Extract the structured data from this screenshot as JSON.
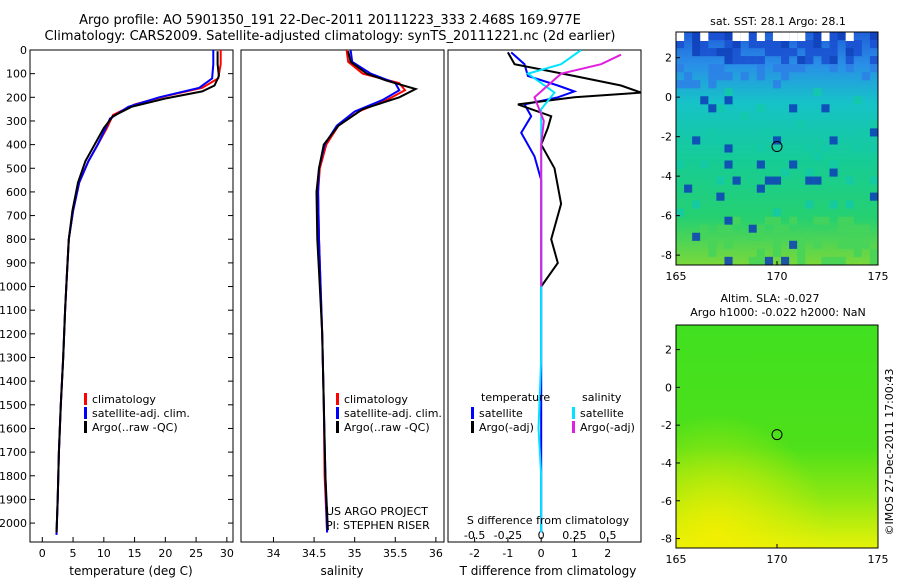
{
  "header": {
    "line1": "Argo profile: AO 5901350_191 22-Dec-2011 20111223_333 2.468S 169.977E",
    "line2": "Climatology: CARS2009. Satellite-adjusted climatology: synTS_20111221.nc (2d earlier)"
  },
  "colors": {
    "climatology": "#ff0000",
    "satellite": "#0000ff",
    "argo": "#000000",
    "salinity_satellite": "#00e5ff",
    "salinity_argo": "#e020e0"
  },
  "depth_ticks": [
    "0",
    "100",
    "200",
    "300",
    "400",
    "500",
    "600",
    "700",
    "800",
    "900",
    "1000",
    "1100",
    "1200",
    "1300",
    "1400",
    "1500",
    "1600",
    "1700",
    "1800",
    "1900",
    "2000"
  ],
  "chart_data": [
    {
      "type": "line",
      "id": "temperature",
      "xlabel": "temperature (deg C)",
      "xlim": [
        -2,
        31
      ],
      "ylim": [
        2080,
        0
      ],
      "y_inverted": true,
      "xticks": [
        "0",
        "5",
        "10",
        "15",
        "20",
        "25",
        "30"
      ],
      "xtick_values": [
        0,
        5,
        10,
        15,
        20,
        25,
        30
      ],
      "legend": [
        "climatology",
        "satellite-adj. clim.",
        "Argo(..raw -QC)"
      ],
      "series": [
        {
          "name": "climatology",
          "color_key": "climatology",
          "points": [
            [
              29.0,
              0
            ],
            [
              29.0,
              60
            ],
            [
              28.6,
              120
            ],
            [
              26.0,
              160
            ],
            [
              20.0,
              195
            ],
            [
              15.0,
              230
            ],
            [
              11.5,
              275
            ],
            [
              10.5,
              330
            ],
            [
              9.0,
              400
            ],
            [
              7.5,
              470
            ],
            [
              6.0,
              560
            ],
            [
              5.0,
              680
            ],
            [
              4.3,
              800
            ],
            [
              4.0,
              950
            ],
            [
              3.7,
              1100
            ],
            [
              3.4,
              1300
            ],
            [
              3.0,
              1500
            ],
            [
              2.7,
              1700
            ],
            [
              2.5,
              1900
            ],
            [
              2.3,
              2050
            ]
          ]
        },
        {
          "name": "satellite-adj. clim.",
          "color_key": "satellite",
          "points": [
            [
              27.8,
              0
            ],
            [
              27.8,
              60
            ],
            [
              27.6,
              120
            ],
            [
              25.5,
              160
            ],
            [
              19.0,
              200
            ],
            [
              14.0,
              240
            ],
            [
              11.0,
              290
            ],
            [
              10.3,
              330
            ],
            [
              9.0,
              400
            ],
            [
              7.5,
              470
            ],
            [
              6.0,
              560
            ],
            [
              5.0,
              680
            ],
            [
              4.3,
              800
            ],
            [
              4.0,
              950
            ],
            [
              3.7,
              1100
            ],
            [
              3.4,
              1300
            ],
            [
              3.0,
              1500
            ],
            [
              2.7,
              1700
            ],
            [
              2.5,
              1900
            ],
            [
              2.3,
              2050
            ]
          ]
        },
        {
          "name": "Argo(..raw -QC)",
          "color_key": "argo",
          "points": [
            [
              28.5,
              5
            ],
            [
              28.5,
              60
            ],
            [
              28.7,
              110
            ],
            [
              28.0,
              150
            ],
            [
              26.0,
              175
            ],
            [
              20.0,
              205
            ],
            [
              14.5,
              240
            ],
            [
              11.5,
              280
            ],
            [
              10.0,
              330
            ],
            [
              8.5,
              400
            ],
            [
              7.0,
              470
            ],
            [
              5.8,
              560
            ],
            [
              4.9,
              680
            ],
            [
              4.3,
              800
            ],
            [
              4.0,
              950
            ],
            [
              3.7,
              1100
            ],
            [
              3.4,
              1300
            ],
            [
              3.0,
              1500
            ],
            [
              2.7,
              1700
            ],
            [
              2.5,
              1900
            ],
            [
              2.3,
              2040
            ]
          ]
        }
      ]
    },
    {
      "type": "line",
      "id": "salinity",
      "xlabel": "salinity",
      "xlim": [
        33.6,
        36.1
      ],
      "ylim": [
        2080,
        0
      ],
      "y_inverted": true,
      "xticks": [
        "34",
        "34.5",
        "35",
        "35.5",
        "36"
      ],
      "xtick_values": [
        34,
        34.5,
        35,
        35.5,
        36
      ],
      "legend": [
        "climatology",
        "satellite-adj. clim.",
        "Argo(..raw -QC)"
      ],
      "annotations": [
        "US ARGO PROJECT",
        "PI: STEPHEN RISER"
      ],
      "series": [
        {
          "name": "climatology",
          "color_key": "climatology",
          "points": [
            [
              34.9,
              0
            ],
            [
              34.92,
              50
            ],
            [
              35.1,
              100
            ],
            [
              35.55,
              140
            ],
            [
              35.62,
              170
            ],
            [
              35.4,
              210
            ],
            [
              35.05,
              260
            ],
            [
              34.8,
              320
            ],
            [
              34.65,
              400
            ],
            [
              34.57,
              500
            ],
            [
              34.55,
              600
            ],
            [
              34.56,
              800
            ],
            [
              34.58,
              1000
            ],
            [
              34.6,
              1200
            ],
            [
              34.62,
              1500
            ],
            [
              34.63,
              1800
            ],
            [
              34.66,
              2040
            ]
          ]
        },
        {
          "name": "satellite-adj. clim.",
          "color_key": "satellite",
          "points": [
            [
              34.95,
              0
            ],
            [
              34.97,
              50
            ],
            [
              35.2,
              100
            ],
            [
              35.5,
              140
            ],
            [
              35.55,
              170
            ],
            [
              35.35,
              210
            ],
            [
              35.0,
              260
            ],
            [
              34.78,
              320
            ],
            [
              34.63,
              400
            ],
            [
              34.56,
              500
            ],
            [
              34.55,
              600
            ],
            [
              34.56,
              800
            ],
            [
              34.58,
              1000
            ],
            [
              34.6,
              1200
            ],
            [
              34.62,
              1500
            ],
            [
              34.64,
              1800
            ],
            [
              34.66,
              2040
            ]
          ]
        },
        {
          "name": "Argo(..raw -QC)",
          "color_key": "argo",
          "points": [
            [
              34.92,
              5
            ],
            [
              34.95,
              50
            ],
            [
              35.15,
              100
            ],
            [
              35.4,
              130
            ],
            [
              35.75,
              165
            ],
            [
              35.55,
              200
            ],
            [
              35.1,
              250
            ],
            [
              34.8,
              320
            ],
            [
              34.62,
              400
            ],
            [
              34.56,
              500
            ],
            [
              34.53,
              600
            ],
            [
              34.54,
              800
            ],
            [
              34.57,
              1000
            ],
            [
              34.6,
              1200
            ],
            [
              34.62,
              1500
            ],
            [
              34.64,
              1800
            ],
            [
              34.67,
              2030
            ]
          ]
        }
      ]
    },
    {
      "type": "line",
      "id": "difference",
      "xlabel": "T difference from climatology",
      "xlabel_top": "S difference from climatology",
      "xlim": [
        -2.8,
        3.0
      ],
      "ylim": [
        2080,
        0
      ],
      "y_inverted": true,
      "xticks": [
        "-2",
        "-1",
        "0",
        "1",
        "2"
      ],
      "xtick_values": [
        -2,
        -1,
        0,
        1,
        2
      ],
      "sticks": [
        "-0.5",
        "-0.25",
        "0",
        "0.25",
        "0.5"
      ],
      "stick_values": [
        -0.5,
        -0.25,
        0,
        0.25,
        0.5
      ],
      "s_scale_to_t": 4,
      "legend_titles": [
        "temperature",
        "salinity"
      ],
      "legend": [
        "satellite",
        "Argo(-adj)",
        "satellite",
        "Argo(-adj)"
      ],
      "series": [
        {
          "name": "satellite",
          "group": "temperature",
          "color_key": "satellite",
          "points": [
            [
              -0.9,
              10
            ],
            [
              -0.5,
              60
            ],
            [
              -0.4,
              110
            ],
            [
              0.5,
              150
            ],
            [
              1.0,
              175
            ],
            [
              0.5,
              200
            ],
            [
              -0.5,
              230
            ],
            [
              -0.3,
              280
            ],
            [
              -0.6,
              350
            ],
            [
              -0.2,
              450
            ],
            [
              0.0,
              550
            ],
            [
              0.0,
              700
            ],
            [
              0.0,
              900
            ],
            [
              0.0,
              1100
            ],
            [
              0.0,
              1500
            ],
            [
              0.0,
              2040
            ]
          ]
        },
        {
          "name": "Argo(-adj)",
          "group": "temperature",
          "color_key": "argo",
          "points": [
            [
              -1.0,
              10
            ],
            [
              -0.8,
              60
            ],
            [
              1.0,
              110
            ],
            [
              2.4,
              150
            ],
            [
              3.0,
              180
            ],
            [
              1.0,
              200
            ],
            [
              -0.7,
              230
            ],
            [
              0.3,
              280
            ],
            [
              0.2,
              330
            ],
            [
              0.0,
              400
            ],
            [
              0.4,
              500
            ],
            [
              0.6,
              650
            ],
            [
              0.3,
              800
            ],
            [
              0.5,
              900
            ],
            [
              0.0,
              1000
            ]
          ]
        },
        {
          "name": "satellite",
          "group": "salinity",
          "color_key": "salinity_satellite",
          "points": [
            [
              0.3,
              0
            ],
            [
              0.15,
              60
            ],
            [
              -0.1,
              100
            ],
            [
              0.1,
              180
            ],
            [
              0.0,
              250
            ],
            [
              0.0,
              400
            ],
            [
              0.0,
              600
            ],
            [
              0.0,
              900
            ],
            [
              0.0,
              1300
            ],
            [
              -0.02,
              1600
            ],
            [
              0.0,
              1800
            ],
            [
              0.0,
              2040
            ]
          ]
        },
        {
          "name": "Argo(-adj)",
          "group": "salinity",
          "color_key": "salinity_argo",
          "points": [
            [
              0.6,
              20
            ],
            [
              0.45,
              60
            ],
            [
              0.15,
              100
            ],
            [
              -0.05,
              200
            ],
            [
              0.02,
              300
            ],
            [
              0.0,
              400
            ],
            [
              0.0,
              700
            ],
            [
              0.0,
              1000
            ]
          ]
        }
      ]
    }
  ],
  "maps": [
    {
      "id": "sst-map",
      "title": "sat. SST: 28.1 Argo: 28.1",
      "xticks": [
        "165",
        "170",
        "175"
      ],
      "yticks": [
        "2",
        "0",
        "-2",
        "-4",
        "-6",
        "-8"
      ],
      "xlim": [
        165,
        175
      ],
      "ylim": [
        -8.5,
        3.3
      ],
      "marker": [
        170,
        -2.5
      ]
    },
    {
      "id": "sla-map",
      "title1": "Altim. SLA: -0.027",
      "title2": "Argo h1000: -0.022 h2000: NaN",
      "xticks": [
        "165",
        "170",
        "175"
      ],
      "yticks": [
        "2",
        "0",
        "-2",
        "-4",
        "-6",
        "-8"
      ],
      "xlim": [
        165,
        175
      ],
      "ylim": [
        -8.5,
        3.3
      ],
      "marker": [
        170,
        -2.5
      ]
    }
  ],
  "credit": "©IMOS 27-Dec-2011 17:00:43"
}
